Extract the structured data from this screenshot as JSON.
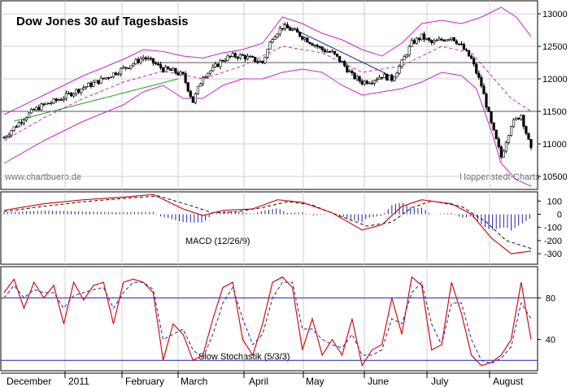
{
  "chart_data": [
    {
      "panel": "price",
      "type": "candlestick",
      "title": "Dow Jones 30 auf Tagesbasis",
      "watermark_left": "www.chartbuero.de",
      "watermark_right": "Hoppenstedt-Charts",
      "ylim": [
        10300,
        13200
      ],
      "yticks": [
        10500,
        11000,
        11500,
        12000,
        12500,
        13000
      ],
      "horizontal_levels": [
        12250,
        11500
      ],
      "x_months": [
        "December",
        "2011",
        "February",
        "March",
        "April",
        "May",
        "June",
        "July",
        "August"
      ],
      "close_weekly": [
        {
          "t": 0,
          "v": 11100
        },
        {
          "t": 4,
          "v": 11250
        },
        {
          "t": 8,
          "v": 11400
        },
        {
          "t": 12,
          "v": 11520
        },
        {
          "t": 16,
          "v": 11600
        },
        {
          "t": 20,
          "v": 11650
        },
        {
          "t": 24,
          "v": 11720
        },
        {
          "t": 28,
          "v": 11800
        },
        {
          "t": 32,
          "v": 11870
        },
        {
          "t": 36,
          "v": 11930
        },
        {
          "t": 40,
          "v": 12000
        },
        {
          "t": 44,
          "v": 12080
        },
        {
          "t": 48,
          "v": 12160
        },
        {
          "t": 52,
          "v": 12240
        },
        {
          "t": 56,
          "v": 12330
        },
        {
          "t": 60,
          "v": 12250
        },
        {
          "t": 64,
          "v": 12150
        },
        {
          "t": 68,
          "v": 12120
        },
        {
          "t": 72,
          "v": 12050
        },
        {
          "t": 76,
          "v": 11650
        },
        {
          "t": 80,
          "v": 12050
        },
        {
          "t": 84,
          "v": 12150
        },
        {
          "t": 88,
          "v": 12300
        },
        {
          "t": 92,
          "v": 12350
        },
        {
          "t": 96,
          "v": 12350
        },
        {
          "t": 100,
          "v": 12300
        },
        {
          "t": 104,
          "v": 12250
        },
        {
          "t": 108,
          "v": 12650
        },
        {
          "t": 112,
          "v": 12800
        },
        {
          "t": 116,
          "v": 12750
        },
        {
          "t": 120,
          "v": 12650
        },
        {
          "t": 124,
          "v": 12550
        },
        {
          "t": 128,
          "v": 12450
        },
        {
          "t": 132,
          "v": 12400
        },
        {
          "t": 136,
          "v": 12250
        },
        {
          "t": 140,
          "v": 12050
        },
        {
          "t": 144,
          "v": 11950
        },
        {
          "t": 148,
          "v": 11980
        },
        {
          "t": 152,
          "v": 12050
        },
        {
          "t": 156,
          "v": 12000
        },
        {
          "t": 160,
          "v": 12250
        },
        {
          "t": 164,
          "v": 12550
        },
        {
          "t": 168,
          "v": 12650
        },
        {
          "t": 172,
          "v": 12550
        },
        {
          "t": 176,
          "v": 12600
        },
        {
          "t": 180,
          "v": 12650
        },
        {
          "t": 184,
          "v": 12500
        },
        {
          "t": 188,
          "v": 12300
        },
        {
          "t": 192,
          "v": 11900
        },
        {
          "t": 196,
          "v": 11300
        },
        {
          "t": 200,
          "v": 10800
        },
        {
          "t": 204,
          "v": 11300
        },
        {
          "t": 208,
          "v": 11450
        },
        {
          "t": 212,
          "v": 10900
        }
      ],
      "bollinger_upper": [
        {
          "t": 0,
          "v": 11450
        },
        {
          "t": 16,
          "v": 11750
        },
        {
          "t": 32,
          "v": 12050
        },
        {
          "t": 48,
          "v": 12300
        },
        {
          "t": 56,
          "v": 12450
        },
        {
          "t": 64,
          "v": 12420
        },
        {
          "t": 72,
          "v": 12350
        },
        {
          "t": 80,
          "v": 12320
        },
        {
          "t": 88,
          "v": 12400
        },
        {
          "t": 96,
          "v": 12450
        },
        {
          "t": 104,
          "v": 12550
        },
        {
          "t": 112,
          "v": 12950
        },
        {
          "t": 120,
          "v": 12850
        },
        {
          "t": 128,
          "v": 12700
        },
        {
          "t": 136,
          "v": 12600
        },
        {
          "t": 144,
          "v": 12450
        },
        {
          "t": 152,
          "v": 12350
        },
        {
          "t": 160,
          "v": 12550
        },
        {
          "t": 168,
          "v": 12850
        },
        {
          "t": 176,
          "v": 12900
        },
        {
          "t": 184,
          "v": 12850
        },
        {
          "t": 192,
          "v": 12950
        },
        {
          "t": 200,
          "v": 13100
        },
        {
          "t": 206,
          "v": 12950
        },
        {
          "t": 212,
          "v": 12650
        }
      ],
      "bollinger_lower": [
        {
          "t": 0,
          "v": 10700
        },
        {
          "t": 16,
          "v": 11050
        },
        {
          "t": 32,
          "v": 11350
        },
        {
          "t": 48,
          "v": 11600
        },
        {
          "t": 56,
          "v": 11800
        },
        {
          "t": 64,
          "v": 11900
        },
        {
          "t": 72,
          "v": 11700
        },
        {
          "t": 80,
          "v": 11700
        },
        {
          "t": 88,
          "v": 11900
        },
        {
          "t": 96,
          "v": 12000
        },
        {
          "t": 104,
          "v": 12000
        },
        {
          "t": 112,
          "v": 12100
        },
        {
          "t": 120,
          "v": 12150
        },
        {
          "t": 128,
          "v": 12100
        },
        {
          "t": 136,
          "v": 11900
        },
        {
          "t": 144,
          "v": 11750
        },
        {
          "t": 152,
          "v": 11800
        },
        {
          "t": 160,
          "v": 11850
        },
        {
          "t": 168,
          "v": 11950
        },
        {
          "t": 176,
          "v": 12100
        },
        {
          "t": 184,
          "v": 12050
        },
        {
          "t": 190,
          "v": 11850
        },
        {
          "t": 196,
          "v": 11200
        },
        {
          "t": 200,
          "v": 10700
        },
        {
          "t": 206,
          "v": 10450
        },
        {
          "t": 212,
          "v": 10350
        }
      ],
      "moving_average": [
        {
          "t": 0,
          "v": 11050
        },
        {
          "t": 16,
          "v": 11400
        },
        {
          "t": 32,
          "v": 11700
        },
        {
          "t": 48,
          "v": 11950
        },
        {
          "t": 64,
          "v": 12120
        },
        {
          "t": 80,
          "v": 12000
        },
        {
          "t": 96,
          "v": 12200
        },
        {
          "t": 112,
          "v": 12500
        },
        {
          "t": 128,
          "v": 12400
        },
        {
          "t": 144,
          "v": 12100
        },
        {
          "t": 160,
          "v": 12200
        },
        {
          "t": 176,
          "v": 12500
        },
        {
          "t": 188,
          "v": 12400
        },
        {
          "t": 196,
          "v": 12050
        },
        {
          "t": 204,
          "v": 11700
        },
        {
          "t": 212,
          "v": 11500
        }
      ],
      "trendlines": [
        {
          "color": "#20a020",
          "from": {
            "t": 4,
            "v": 11350
          },
          "to": {
            "t": 70,
            "v": 12000
          }
        },
        {
          "color": "#2a2aa0",
          "from": {
            "t": 112,
            "v": 12850
          },
          "to": {
            "t": 158,
            "v": 12000
          }
        }
      ]
    },
    {
      "panel": "macd",
      "type": "line",
      "label": "MACD (12/26/9)",
      "ylim": [
        -380,
        170
      ],
      "yticks": [
        100,
        0,
        -100,
        -200,
        -300
      ],
      "macd": [
        {
          "t": 0,
          "v": 30
        },
        {
          "t": 16,
          "v": 80
        },
        {
          "t": 32,
          "v": 110
        },
        {
          "t": 48,
          "v": 130
        },
        {
          "t": 60,
          "v": 150
        },
        {
          "t": 72,
          "v": 40
        },
        {
          "t": 80,
          "v": -10
        },
        {
          "t": 88,
          "v": 30
        },
        {
          "t": 100,
          "v": 40
        },
        {
          "t": 110,
          "v": 110
        },
        {
          "t": 120,
          "v": 90
        },
        {
          "t": 132,
          "v": 10
        },
        {
          "t": 144,
          "v": -120
        },
        {
          "t": 152,
          "v": -80
        },
        {
          "t": 160,
          "v": 60
        },
        {
          "t": 168,
          "v": 110
        },
        {
          "t": 180,
          "v": 80
        },
        {
          "t": 188,
          "v": 0
        },
        {
          "t": 196,
          "v": -180
        },
        {
          "t": 204,
          "v": -300
        },
        {
          "t": 212,
          "v": -280
        }
      ],
      "signal": [
        {
          "t": 0,
          "v": 20
        },
        {
          "t": 16,
          "v": 60
        },
        {
          "t": 32,
          "v": 95
        },
        {
          "t": 48,
          "v": 120
        },
        {
          "t": 62,
          "v": 140
        },
        {
          "t": 76,
          "v": 60
        },
        {
          "t": 84,
          "v": 10
        },
        {
          "t": 94,
          "v": 20
        },
        {
          "t": 104,
          "v": 50
        },
        {
          "t": 114,
          "v": 95
        },
        {
          "t": 124,
          "v": 70
        },
        {
          "t": 136,
          "v": -20
        },
        {
          "t": 146,
          "v": -90
        },
        {
          "t": 156,
          "v": -60
        },
        {
          "t": 164,
          "v": 50
        },
        {
          "t": 172,
          "v": 100
        },
        {
          "t": 184,
          "v": 60
        },
        {
          "t": 194,
          "v": -60
        },
        {
          "t": 202,
          "v": -200
        },
        {
          "t": 212,
          "v": -260
        }
      ]
    },
    {
      "panel": "stochastic",
      "type": "line",
      "label": "Slow Stochastik (5/3/3)",
      "ylim": [
        10,
        110
      ],
      "yticks": [
        80,
        40
      ],
      "horizontal_levels": [
        80,
        20
      ],
      "k": [
        {
          "t": 0,
          "v": 85
        },
        {
          "t": 4,
          "v": 98
        },
        {
          "t": 8,
          "v": 70
        },
        {
          "t": 12,
          "v": 95
        },
        {
          "t": 16,
          "v": 80
        },
        {
          "t": 20,
          "v": 92
        },
        {
          "t": 24,
          "v": 55
        },
        {
          "t": 28,
          "v": 95
        },
        {
          "t": 32,
          "v": 78
        },
        {
          "t": 36,
          "v": 92
        },
        {
          "t": 40,
          "v": 95
        },
        {
          "t": 44,
          "v": 55
        },
        {
          "t": 48,
          "v": 95
        },
        {
          "t": 52,
          "v": 98
        },
        {
          "t": 56,
          "v": 95
        },
        {
          "t": 60,
          "v": 85
        },
        {
          "t": 64,
          "v": 20
        },
        {
          "t": 68,
          "v": 55
        },
        {
          "t": 72,
          "v": 45
        },
        {
          "t": 76,
          "v": 20
        },
        {
          "t": 80,
          "v": 25
        },
        {
          "t": 84,
          "v": 60
        },
        {
          "t": 88,
          "v": 90
        },
        {
          "t": 92,
          "v": 95
        },
        {
          "t": 96,
          "v": 40
        },
        {
          "t": 100,
          "v": 25
        },
        {
          "t": 104,
          "v": 55
        },
        {
          "t": 108,
          "v": 95
        },
        {
          "t": 112,
          "v": 100
        },
        {
          "t": 116,
          "v": 90
        },
        {
          "t": 120,
          "v": 30
        },
        {
          "t": 124,
          "v": 60
        },
        {
          "t": 128,
          "v": 25
        },
        {
          "t": 132,
          "v": 40
        },
        {
          "t": 136,
          "v": 25
        },
        {
          "t": 140,
          "v": 60
        },
        {
          "t": 144,
          "v": 15
        },
        {
          "t": 148,
          "v": 30
        },
        {
          "t": 152,
          "v": 35
        },
        {
          "t": 156,
          "v": 80
        },
        {
          "t": 160,
          "v": 45
        },
        {
          "t": 164,
          "v": 100
        },
        {
          "t": 168,
          "v": 92
        },
        {
          "t": 172,
          "v": 30
        },
        {
          "t": 176,
          "v": 35
        },
        {
          "t": 180,
          "v": 95
        },
        {
          "t": 184,
          "v": 65
        },
        {
          "t": 188,
          "v": 25
        },
        {
          "t": 192,
          "v": 15
        },
        {
          "t": 196,
          "v": 18
        },
        {
          "t": 200,
          "v": 25
        },
        {
          "t": 204,
          "v": 40
        },
        {
          "t": 208,
          "v": 95
        },
        {
          "t": 212,
          "v": 40
        }
      ],
      "d": [
        {
          "t": 0,
          "v": 80
        },
        {
          "t": 4,
          "v": 92
        },
        {
          "t": 8,
          "v": 80
        },
        {
          "t": 12,
          "v": 88
        },
        {
          "t": 16,
          "v": 85
        },
        {
          "t": 20,
          "v": 85
        },
        {
          "t": 24,
          "v": 70
        },
        {
          "t": 28,
          "v": 82
        },
        {
          "t": 32,
          "v": 85
        },
        {
          "t": 36,
          "v": 88
        },
        {
          "t": 40,
          "v": 90
        },
        {
          "t": 44,
          "v": 70
        },
        {
          "t": 48,
          "v": 85
        },
        {
          "t": 52,
          "v": 95
        },
        {
          "t": 56,
          "v": 95
        },
        {
          "t": 60,
          "v": 88
        },
        {
          "t": 64,
          "v": 40
        },
        {
          "t": 68,
          "v": 45
        },
        {
          "t": 72,
          "v": 50
        },
        {
          "t": 76,
          "v": 30
        },
        {
          "t": 80,
          "v": 22
        },
        {
          "t": 84,
          "v": 45
        },
        {
          "t": 88,
          "v": 75
        },
        {
          "t": 92,
          "v": 90
        },
        {
          "t": 96,
          "v": 60
        },
        {
          "t": 100,
          "v": 35
        },
        {
          "t": 104,
          "v": 45
        },
        {
          "t": 108,
          "v": 80
        },
        {
          "t": 112,
          "v": 95
        },
        {
          "t": 116,
          "v": 95
        },
        {
          "t": 120,
          "v": 50
        },
        {
          "t": 124,
          "v": 50
        },
        {
          "t": 128,
          "v": 40
        },
        {
          "t": 132,
          "v": 35
        },
        {
          "t": 136,
          "v": 32
        },
        {
          "t": 140,
          "v": 45
        },
        {
          "t": 144,
          "v": 25
        },
        {
          "t": 148,
          "v": 25
        },
        {
          "t": 152,
          "v": 30
        },
        {
          "t": 156,
          "v": 60
        },
        {
          "t": 160,
          "v": 55
        },
        {
          "t": 164,
          "v": 85
        },
        {
          "t": 168,
          "v": 95
        },
        {
          "t": 172,
          "v": 55
        },
        {
          "t": 176,
          "v": 35
        },
        {
          "t": 180,
          "v": 75
        },
        {
          "t": 184,
          "v": 75
        },
        {
          "t": 188,
          "v": 40
        },
        {
          "t": 192,
          "v": 20
        },
        {
          "t": 196,
          "v": 17
        },
        {
          "t": 200,
          "v": 22
        },
        {
          "t": 204,
          "v": 33
        },
        {
          "t": 208,
          "v": 75
        },
        {
          "t": 212,
          "v": 60
        }
      ]
    }
  ],
  "colors": {
    "frame": "#000000",
    "grid": "#cfcfcf",
    "bollinger": "#d020d0",
    "macd_line": "#d01010",
    "signal_line": "#101010",
    "histogram": "#2020b0",
    "stoch_k": "#d01010",
    "stoch_d": "#2020b0",
    "level_line": "#2020b0",
    "candle_up": "#ffffff",
    "candle_down": "#000000"
  }
}
